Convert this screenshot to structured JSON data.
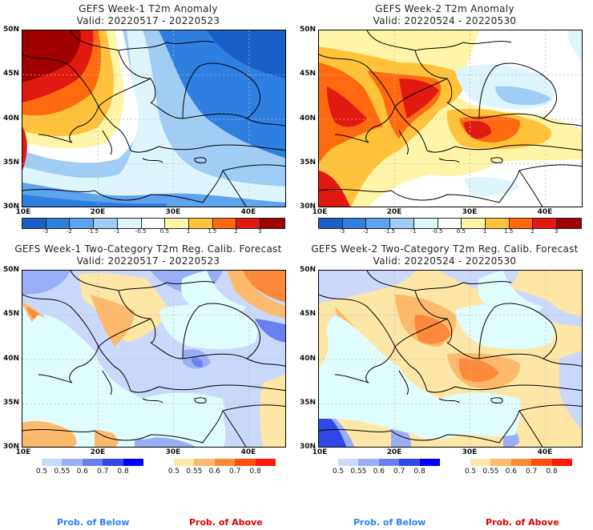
{
  "panels": [
    {
      "id": "week1-anom",
      "title": "GEFS Week-1 T2m Anomaly",
      "valid": "Valid: 20220517 - 20220523",
      "field": "anomaly",
      "week": 1
    },
    {
      "id": "week2-anom",
      "title": "GEFS Week-2 T2m Anomaly",
      "valid": "Valid: 20220524 - 20220530",
      "field": "anomaly",
      "week": 2
    },
    {
      "id": "week1-prob",
      "title": "GEFS Week-1 Two-Category T2m Reg. Calib. Forecast",
      "valid": "Valid: 20220517 - 20220523",
      "field": "probability",
      "week": 1
    },
    {
      "id": "week2-prob",
      "title": "GEFS Week-2 Two-Category T2m Reg. Calib. Forecast",
      "valid": "Valid: 20220524 - 20220530",
      "field": "probability",
      "week": 2
    }
  ],
  "axes": {
    "lat_labels": [
      "50N",
      "45N",
      "40N",
      "35N",
      "30N"
    ],
    "lon_labels": [
      "10E",
      "20E",
      "30E",
      "40E"
    ],
    "lat_range": [
      30,
      50
    ],
    "lon_range": [
      10,
      45
    ]
  },
  "anomaly_colorbar": {
    "labels": [
      "-3",
      "-2",
      "-1.5",
      "-1",
      "-0.5",
      "0.5",
      "1",
      "1.5",
      "2",
      "3"
    ],
    "colors": [
      "#1a5fc8",
      "#2f7fe0",
      "#5ea3ee",
      "#a0cdf5",
      "#dff5fd",
      "#ffffff",
      "#fff5a8",
      "#ffc23a",
      "#ff6a10",
      "#e01a10",
      "#a00000"
    ]
  },
  "prob_below_colorbar": {
    "labels": [
      "0.5",
      "0.55",
      "0.6",
      "0.7",
      "0.8"
    ],
    "colors": [
      "#c9d8fb",
      "#9aaef7",
      "#6a7ff0",
      "#3048e8",
      "#0000f0"
    ]
  },
  "prob_above_colorbar": {
    "labels": [
      "0.5",
      "0.55",
      "0.6",
      "0.7",
      "0.8"
    ],
    "colors": [
      "#fde6a6",
      "#fdb96c",
      "#fd8a3a",
      "#fd5010",
      "#fd1a0a"
    ]
  },
  "legend": {
    "below": "Prob. of Below",
    "above": "Prob. of Above",
    "below_color": "#2a7fff",
    "above_color": "#e00000"
  },
  "colors": {
    "sea_prob": "#e0fdfd",
    "coast": "#000000"
  }
}
